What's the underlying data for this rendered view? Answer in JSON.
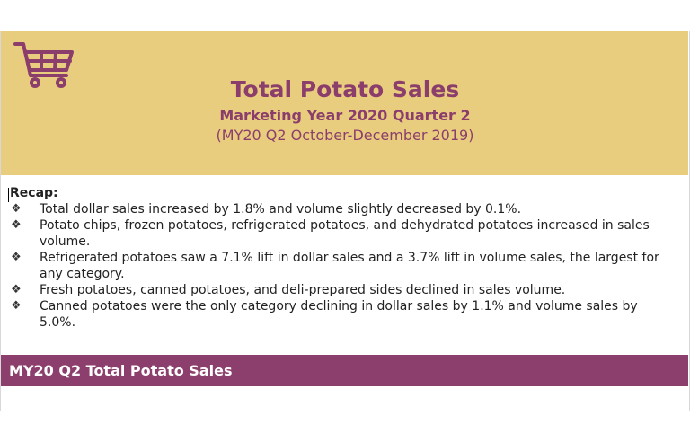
{
  "header": {
    "title": "Total Potato Sales",
    "subtitle": "Marketing Year 2020 Quarter 2",
    "period": "(MY20 Q2 October-December 2019)",
    "icon": "shopping-cart-icon",
    "background_color": "#e9cd7e",
    "text_color": "#8b3e6c"
  },
  "recap": {
    "heading": "Recap:",
    "bullets": [
      "Total dollar sales increased by 1.8% and volume slightly decreased by 0.1%.",
      "Potato chips, frozen potatoes, refrigerated potatoes, and dehydrated potatoes increased in sales volume.",
      "Refrigerated potatoes saw a 7.1% lift in dollar sales and a 3.7% lift in volume sales, the largest for any category.",
      "Fresh potatoes, canned potatoes, and deli-prepared sides declined in sales volume.",
      "Canned potatoes were the only category declining in dollar sales by 1.1% and volume sales by 5.0%."
    ],
    "bullet_glyph": "❖"
  },
  "section": {
    "title": "MY20 Q2 Total Potato Sales",
    "background_color": "#8c3f6c"
  }
}
